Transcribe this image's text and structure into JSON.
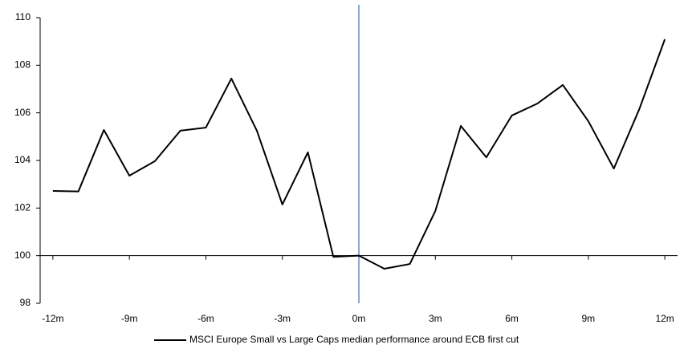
{
  "chart_data": {
    "type": "line",
    "x": [
      -12,
      -11,
      -10,
      -9,
      -8,
      -7,
      -6,
      -5,
      -4,
      -3,
      -2,
      -1,
      0,
      1,
      2,
      3,
      4,
      5,
      6,
      7,
      8,
      9,
      10,
      11,
      12
    ],
    "series": [
      {
        "name": "MSCI Europe Small vs Large Caps median performance around ECB first cut",
        "color": "#000000",
        "values": [
          102.72,
          102.7,
          105.28,
          103.36,
          103.97,
          105.25,
          105.38,
          107.44,
          105.25,
          102.15,
          104.34,
          99.95,
          100.0,
          99.45,
          99.65,
          101.88,
          105.45,
          104.13,
          105.89,
          106.39,
          107.17,
          105.65,
          103.66,
          106.16,
          109.09
        ]
      }
    ],
    "xlim": [
      -12.5,
      12.5
    ],
    "xticks": [
      {
        "value": -12,
        "label": "-12m"
      },
      {
        "value": -9,
        "label": "-9m"
      },
      {
        "value": -6,
        "label": "-6m"
      },
      {
        "value": -3,
        "label": "-3m"
      },
      {
        "value": 0,
        "label": "0m"
      },
      {
        "value": 3,
        "label": "3m"
      },
      {
        "value": 6,
        "label": "6m"
      },
      {
        "value": 9,
        "label": "9m"
      },
      {
        "value": 12,
        "label": "12m"
      }
    ],
    "ylim": [
      98,
      110
    ],
    "yticks": [
      98,
      100,
      102,
      104,
      106,
      108,
      110
    ],
    "x_axis_at": 100,
    "event_x": 0,
    "event_color": "#5b8fc7",
    "legend": "bottom"
  }
}
